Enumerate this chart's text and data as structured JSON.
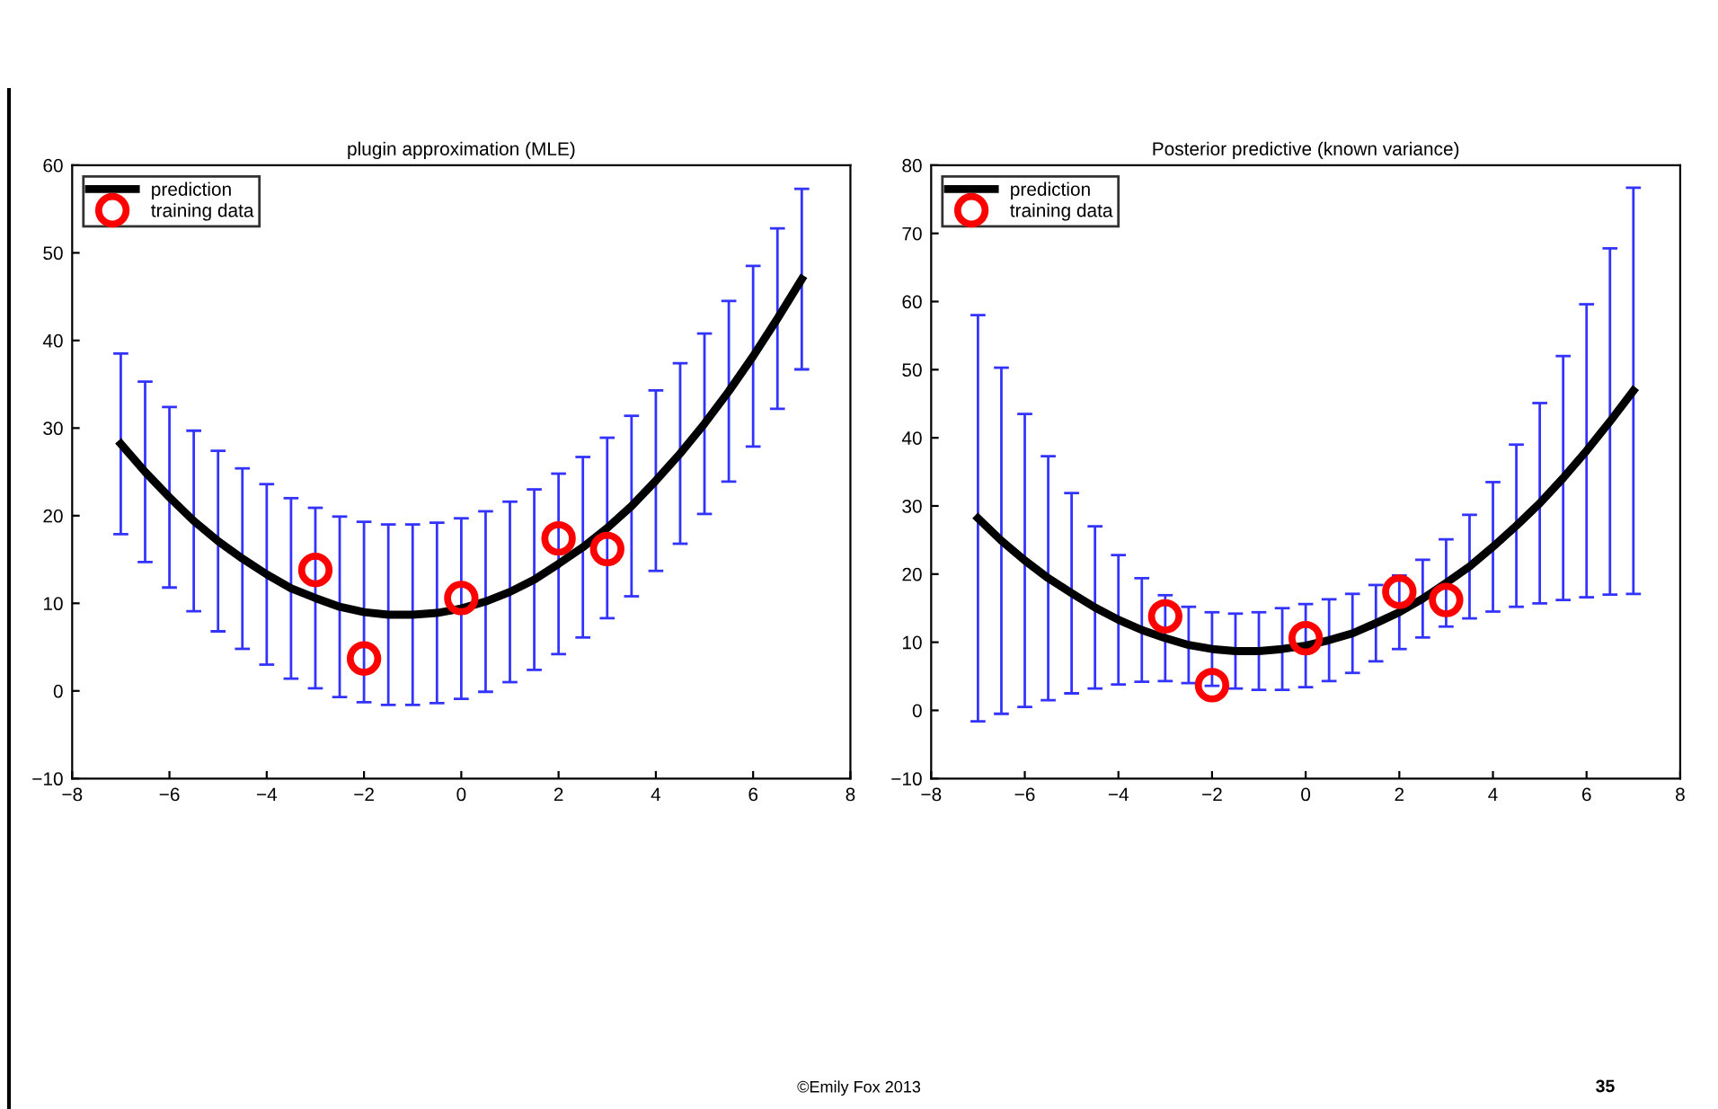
{
  "chart_data": [
    {
      "type": "line",
      "title": "plugin approximation (MLE)",
      "x": [
        -7,
        -6.5,
        -6,
        -5.5,
        -5,
        -4.5,
        -4,
        -3.5,
        -3,
        -2.5,
        -2,
        -1.5,
        -1,
        -0.5,
        0,
        0.5,
        1,
        1.5,
        2,
        2.5,
        3,
        3.5,
        4,
        4.5,
        5,
        5.5,
        6,
        6.5,
        7
      ],
      "series": [
        {
          "name": "prediction",
          "color": "#000000",
          "marker": "none",
          "line_style": "solid",
          "values": [
            28.2,
            25.0,
            22.1,
            19.4,
            17.1,
            15.1,
            13.3,
            11.7,
            10.6,
            9.6,
            9.0,
            8.7,
            8.7,
            8.9,
            9.4,
            10.2,
            11.3,
            12.7,
            14.5,
            16.4,
            18.6,
            21.1,
            24.0,
            27.1,
            30.5,
            34.2,
            38.2,
            42.5,
            47.0
          ],
          "errors": [
            10.3,
            10.3,
            10.3,
            10.3,
            10.3,
            10.3,
            10.3,
            10.3,
            10.3,
            10.3,
            10.3,
            10.3,
            10.3,
            10.3,
            10.3,
            10.3,
            10.3,
            10.3,
            10.3,
            10.3,
            10.3,
            10.3,
            10.3,
            10.3,
            10.3,
            10.3,
            10.3,
            10.3,
            10.3
          ]
        },
        {
          "name": "training data",
          "type": "scatter",
          "color": "#ff0000",
          "marker": "circle",
          "x": [
            -3,
            -2,
            0,
            2,
            3
          ],
          "values": [
            13.8,
            3.7,
            10.6,
            17.4,
            16.2
          ]
        }
      ],
      "xlim": [
        -8,
        8
      ],
      "xticks": [
        -8,
        -6,
        -4,
        -2,
        0,
        2,
        4,
        6,
        8
      ],
      "ylim": [
        -10,
        60
      ],
      "yticks": [
        -10,
        0,
        10,
        20,
        30,
        40,
        50,
        60
      ],
      "grid": false,
      "legend": "top left",
      "annotations": [
        "©Emily Fox 2013",
        "35"
      ]
    },
    {
      "type": "line",
      "title": "Posterior predictive (known variance)",
      "x": [
        -7,
        -6.5,
        -6,
        -5.5,
        -5,
        -4.5,
        -4,
        -3.5,
        -3,
        -2.5,
        -2,
        -1.5,
        -1,
        -0.5,
        0,
        0.5,
        1,
        1.5,
        2,
        2.5,
        3,
        3.5,
        4,
        4.5,
        5,
        5.5,
        6,
        6.5,
        7
      ],
      "series": [
        {
          "name": "prediction",
          "color": "#000000",
          "marker": "none",
          "line_style": "solid",
          "values": [
            28.2,
            24.9,
            22.0,
            19.4,
            17.2,
            15.1,
            13.3,
            11.8,
            10.6,
            9.6,
            9.0,
            8.7,
            8.7,
            9.0,
            9.5,
            10.3,
            11.3,
            12.8,
            14.4,
            16.4,
            18.7,
            21.1,
            24.0,
            27.1,
            30.4,
            34.1,
            38.1,
            42.4,
            46.9
          ],
          "errors": [
            29.8,
            25.4,
            21.5,
            17.9,
            14.7,
            11.9,
            9.5,
            7.6,
            6.3,
            5.6,
            5.4,
            5.5,
            5.7,
            6.0,
            6.1,
            6.0,
            5.8,
            5.6,
            5.4,
            5.7,
            6.4,
            7.6,
            9.5,
            11.9,
            14.7,
            17.9,
            21.5,
            25.4,
            29.8
          ]
        },
        {
          "name": "training data",
          "type": "scatter",
          "color": "#ff0000",
          "marker": "circle",
          "x": [
            -3,
            -2,
            0,
            2,
            3
          ],
          "values": [
            13.8,
            3.7,
            10.6,
            17.4,
            16.2
          ]
        }
      ],
      "xlim": [
        -8,
        8
      ],
      "xticks": [
        -8,
        -6,
        -4,
        -2,
        0,
        2,
        4,
        6,
        8
      ],
      "ylim": [
        -10,
        80
      ],
      "yticks": [
        -10,
        0,
        10,
        20,
        30,
        40,
        50,
        60,
        70,
        80
      ],
      "grid": false,
      "legend": "top left"
    }
  ]
}
